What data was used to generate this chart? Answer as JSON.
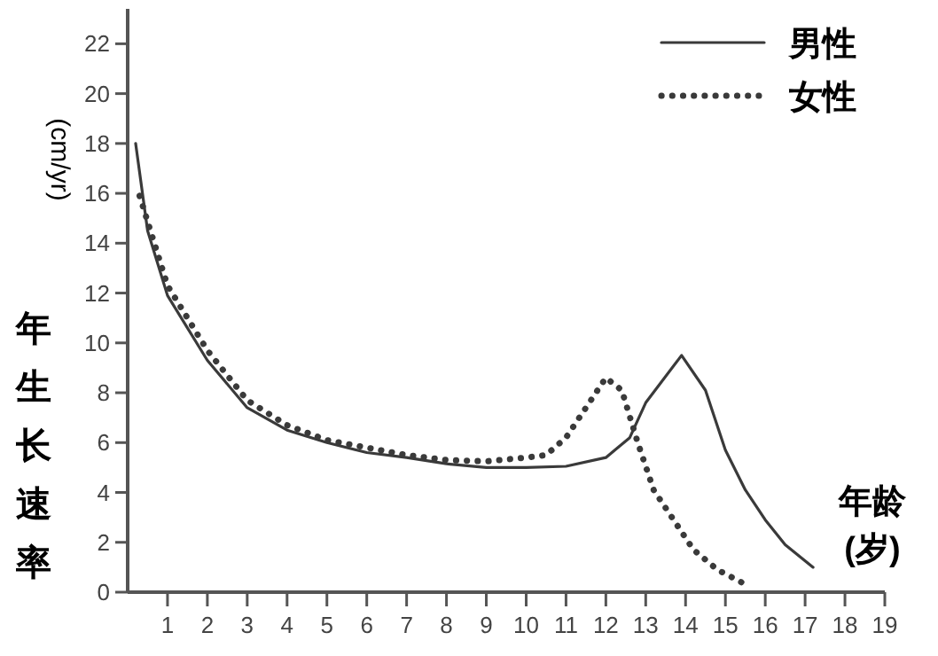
{
  "chart_data": {
    "type": "line",
    "xlabel": "年龄\n(岁)",
    "ylabel": "年生长速率",
    "annotations": [
      "(cm/yr)"
    ],
    "xlim": [
      0,
      19
    ],
    "ylim": [
      0,
      23.4
    ],
    "xticks": [
      1,
      2,
      3,
      4,
      5,
      6,
      7,
      8,
      9,
      10,
      11,
      12,
      13,
      14,
      15,
      16,
      17,
      18,
      19
    ],
    "yticks": [
      0,
      2,
      4,
      6,
      8,
      10,
      12,
      14,
      16,
      18,
      20,
      22
    ],
    "grid": false,
    "legend": "top right",
    "marker": "none",
    "series": [
      {
        "name": "男性",
        "color": "#3a3a3a",
        "line_style": "solid",
        "x": [
          0.2,
          0.5,
          1,
          2,
          3,
          4,
          5,
          6,
          7,
          8,
          9,
          10,
          11,
          12,
          12.6,
          13,
          13.9,
          14.5,
          15,
          15.5,
          16,
          16.5,
          17.2
        ],
        "values": [
          18,
          14.5,
          11.9,
          9.3,
          7.4,
          6.5,
          6.0,
          5.6,
          5.4,
          5.15,
          5.0,
          5.0,
          5.05,
          5.4,
          6.2,
          7.6,
          9.5,
          8.1,
          5.7,
          4.1,
          2.9,
          1.9,
          1.0
        ]
      },
      {
        "name": "女性",
        "color": "#3a3a3a",
        "line_style": "dotted",
        "x": [
          0.3,
          1,
          2,
          3,
          4,
          5,
          6,
          7,
          8,
          9,
          10,
          10.5,
          11,
          11.5,
          12,
          12.4,
          12.8,
          13.2,
          13.7,
          14.2,
          14.8,
          15.4
        ],
        "values": [
          15.9,
          12.3,
          9.7,
          7.7,
          6.7,
          6.1,
          5.8,
          5.5,
          5.3,
          5.25,
          5.4,
          5.5,
          6.2,
          7.4,
          8.6,
          8.1,
          6.0,
          4.1,
          2.9,
          1.7,
          0.9,
          0.4
        ]
      }
    ]
  }
}
